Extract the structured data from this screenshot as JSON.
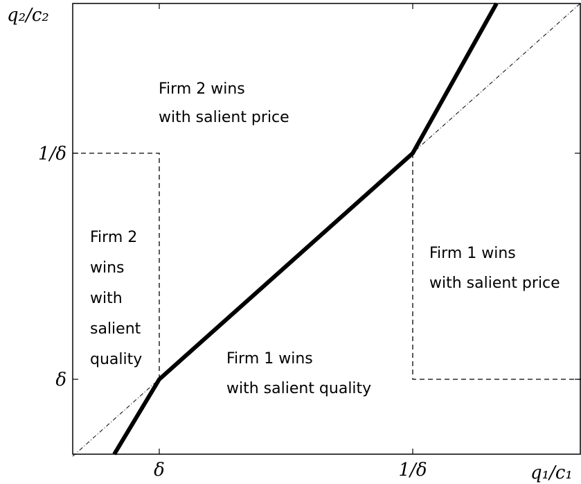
{
  "axes": {
    "y_label": "q₂/c₂",
    "x_label": "q₁/c₁",
    "x_ticks": [
      "δ",
      "1/δ"
    ],
    "y_ticks": [
      "δ",
      "1/δ"
    ]
  },
  "regions": [
    {
      "lines": [
        "Firm 2 wins",
        "with salient price"
      ]
    },
    {
      "lines": [
        "Firm 2",
        "wins",
        "with",
        "salient",
        "quality"
      ]
    },
    {
      "lines": [
        "Firm 1 wins",
        "with salient price"
      ]
    },
    {
      "lines": [
        "Firm 1 wins",
        "with salient quality"
      ]
    }
  ]
}
